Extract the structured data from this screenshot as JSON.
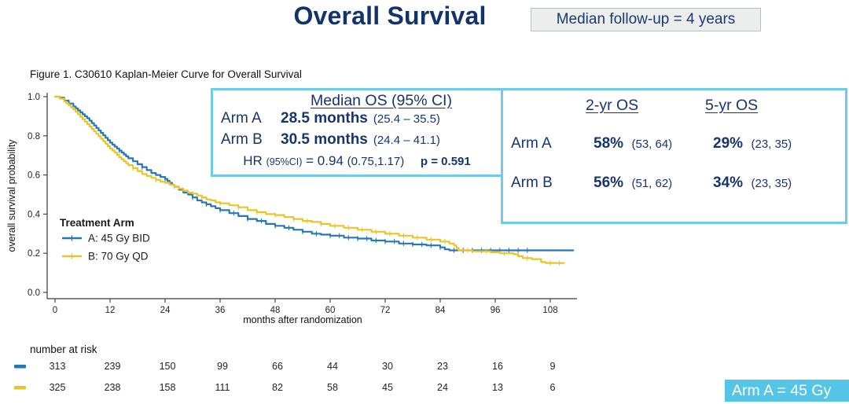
{
  "header": {
    "title": "Overall Survival",
    "followup_note": "Median follow-up = 4 years"
  },
  "figure_caption": "Figure 1. C30610 Kaplan-Meier Curve for Overall Survival",
  "stats_box": {
    "header": "Median OS (95% CI)",
    "rows": [
      {
        "arm": "Arm A",
        "value": "28.5 months",
        "ci": "(25.4 – 35.5)"
      },
      {
        "arm": "Arm B",
        "value": "30.5 months",
        "ci": "(24.4 – 41.1)"
      }
    ],
    "hr_prefix": "HR",
    "hr_ci_label": "(95%CI)",
    "hr_value": "= 0.94",
    "hr_ci": "(0.75,1.17)",
    "p_value": "p = 0.591"
  },
  "os_table": {
    "col_headers": [
      "2-yr OS",
      "5-yr OS"
    ],
    "rows": [
      {
        "arm": "Arm A",
        "v2": "58%",
        "ci2": "(53, 64)",
        "v5": "29%",
        "ci5": "(23, 35)"
      },
      {
        "arm": "Arm B",
        "v2": "56%",
        "ci2": "(51, 62)",
        "v5": "34%",
        "ci5": "(23, 35)"
      }
    ]
  },
  "footer_badge": "Arm A = 45 Gy",
  "colors": {
    "navy": "#17356d",
    "arm_a_blue": "#2678b5",
    "arm_b_yellow": "#e8c62a",
    "box_border_cyan": "#6fcbe8",
    "badge_bg": "#55c5e7",
    "followup_bg": "#eceeee",
    "axis": "#3a3a3a"
  },
  "chart_data": {
    "type": "line",
    "subtype": "kaplan-meier-step",
    "title": "Figure 1. C30610 Kaplan-Meier Curve for Overall Survival",
    "xlabel": "months after randomization",
    "ylabel": "overall survival probability",
    "xlim": [
      0,
      114
    ],
    "ylim": [
      0.0,
      1.0
    ],
    "xticks": [
      0,
      12,
      24,
      36,
      48,
      60,
      72,
      84,
      96,
      108
    ],
    "yticks": [
      0.0,
      0.2,
      0.4,
      0.6,
      0.8,
      1.0
    ],
    "grid": false,
    "legend_title": "Treatment Arm",
    "legend_position": "inside-left-bottom",
    "series": [
      {
        "name": "A: 45 Gy BID",
        "arm": "Arm A",
        "color": "#2678b5",
        "median_months": 28.5,
        "steps": [
          [
            0,
            1.0
          ],
          [
            1,
            0.995
          ],
          [
            2,
            0.98
          ],
          [
            3,
            0.965
          ],
          [
            4,
            0.95
          ],
          [
            5,
            0.93
          ],
          [
            6,
            0.91
          ],
          [
            7,
            0.89
          ],
          [
            8,
            0.865
          ],
          [
            9,
            0.84
          ],
          [
            10,
            0.815
          ],
          [
            11,
            0.79
          ],
          [
            12,
            0.765
          ],
          [
            13,
            0.745
          ],
          [
            14,
            0.725
          ],
          [
            15,
            0.705
          ],
          [
            16,
            0.685
          ],
          [
            17,
            0.67
          ],
          [
            18,
            0.655
          ],
          [
            19,
            0.64
          ],
          [
            20,
            0.625
          ],
          [
            21,
            0.61
          ],
          [
            22,
            0.6
          ],
          [
            23,
            0.59
          ],
          [
            24,
            0.58
          ],
          [
            25,
            0.56
          ],
          [
            26,
            0.54
          ],
          [
            27,
            0.525
          ],
          [
            28,
            0.51
          ],
          [
            29,
            0.5
          ],
          [
            30,
            0.485
          ],
          [
            31,
            0.47
          ],
          [
            32,
            0.46
          ],
          [
            33,
            0.45
          ],
          [
            34,
            0.44
          ],
          [
            35,
            0.43
          ],
          [
            36,
            0.42
          ],
          [
            38,
            0.405
          ],
          [
            40,
            0.39
          ],
          [
            42,
            0.375
          ],
          [
            44,
            0.365
          ],
          [
            46,
            0.35
          ],
          [
            48,
            0.34
          ],
          [
            50,
            0.33
          ],
          [
            52,
            0.32
          ],
          [
            54,
            0.31
          ],
          [
            56,
            0.3
          ],
          [
            58,
            0.295
          ],
          [
            60,
            0.29
          ],
          [
            63,
            0.28
          ],
          [
            66,
            0.275
          ],
          [
            69,
            0.265
          ],
          [
            72,
            0.26
          ],
          [
            75,
            0.25
          ],
          [
            78,
            0.245
          ],
          [
            81,
            0.24
          ],
          [
            84,
            0.23
          ],
          [
            85,
            0.22
          ],
          [
            86,
            0.215
          ],
          [
            113,
            0.215
          ]
        ],
        "censor_months": [
          14,
          19,
          24,
          30,
          33,
          36,
          39,
          42,
          45,
          48,
          51,
          54,
          57,
          60,
          62,
          64,
          66,
          68,
          70,
          72,
          74,
          76,
          78,
          80,
          82,
          84,
          87,
          89,
          91,
          93,
          95,
          97,
          99,
          101,
          103
        ]
      },
      {
        "name": "B: 70 Gy QD",
        "arm": "Arm B",
        "color": "#e8c62a",
        "median_months": 30.5,
        "steps": [
          [
            0,
            1.0
          ],
          [
            1,
            0.99
          ],
          [
            2,
            0.975
          ],
          [
            3,
            0.955
          ],
          [
            4,
            0.935
          ],
          [
            5,
            0.91
          ],
          [
            6,
            0.885
          ],
          [
            7,
            0.86
          ],
          [
            8,
            0.835
          ],
          [
            9,
            0.81
          ],
          [
            10,
            0.785
          ],
          [
            11,
            0.76
          ],
          [
            12,
            0.735
          ],
          [
            13,
            0.715
          ],
          [
            14,
            0.69
          ],
          [
            15,
            0.67
          ],
          [
            16,
            0.65
          ],
          [
            17,
            0.635
          ],
          [
            18,
            0.62
          ],
          [
            19,
            0.605
          ],
          [
            20,
            0.595
          ],
          [
            21,
            0.585
          ],
          [
            22,
            0.575
          ],
          [
            23,
            0.565
          ],
          [
            24,
            0.56
          ],
          [
            25,
            0.55
          ],
          [
            26,
            0.54
          ],
          [
            27,
            0.53
          ],
          [
            28,
            0.52
          ],
          [
            29,
            0.51
          ],
          [
            30,
            0.505
          ],
          [
            31,
            0.495
          ],
          [
            32,
            0.485
          ],
          [
            33,
            0.475
          ],
          [
            34,
            0.47
          ],
          [
            35,
            0.46
          ],
          [
            36,
            0.455
          ],
          [
            38,
            0.445
          ],
          [
            40,
            0.435
          ],
          [
            42,
            0.42
          ],
          [
            44,
            0.41
          ],
          [
            46,
            0.4
          ],
          [
            48,
            0.395
          ],
          [
            50,
            0.385
          ],
          [
            52,
            0.375
          ],
          [
            54,
            0.365
          ],
          [
            56,
            0.36
          ],
          [
            58,
            0.35
          ],
          [
            60,
            0.34
          ],
          [
            63,
            0.33
          ],
          [
            66,
            0.32
          ],
          [
            69,
            0.31
          ],
          [
            72,
            0.3
          ],
          [
            75,
            0.29
          ],
          [
            78,
            0.28
          ],
          [
            81,
            0.27
          ],
          [
            84,
            0.26
          ],
          [
            86,
            0.25
          ],
          [
            87,
            0.24
          ],
          [
            88,
            0.215
          ],
          [
            91,
            0.21
          ],
          [
            95,
            0.205
          ],
          [
            97,
            0.2
          ],
          [
            100,
            0.195
          ],
          [
            102,
            0.175
          ],
          [
            104,
            0.17
          ],
          [
            106,
            0.155
          ],
          [
            107,
            0.15
          ],
          [
            111,
            0.15
          ]
        ],
        "censor_months": [
          17,
          22,
          26,
          32,
          36,
          40,
          44,
          48,
          52,
          55,
          58,
          61,
          64,
          67,
          70,
          73,
          76,
          79,
          82,
          85,
          90,
          94,
          98,
          103,
          108,
          110
        ]
      }
    ],
    "number_at_risk": {
      "label": "number at risk",
      "months": [
        0,
        12,
        24,
        36,
        48,
        60,
        72,
        84,
        96,
        108
      ],
      "rows": [
        {
          "series": "A: 45 Gy BID",
          "color": "#2678b5",
          "counts": [
            313,
            239,
            150,
            99,
            66,
            44,
            30,
            23,
            16,
            9
          ]
        },
        {
          "series": "B: 70 Gy QD",
          "color": "#e8c62a",
          "counts": [
            325,
            238,
            158,
            111,
            82,
            58,
            45,
            24,
            13,
            6
          ]
        }
      ]
    }
  }
}
